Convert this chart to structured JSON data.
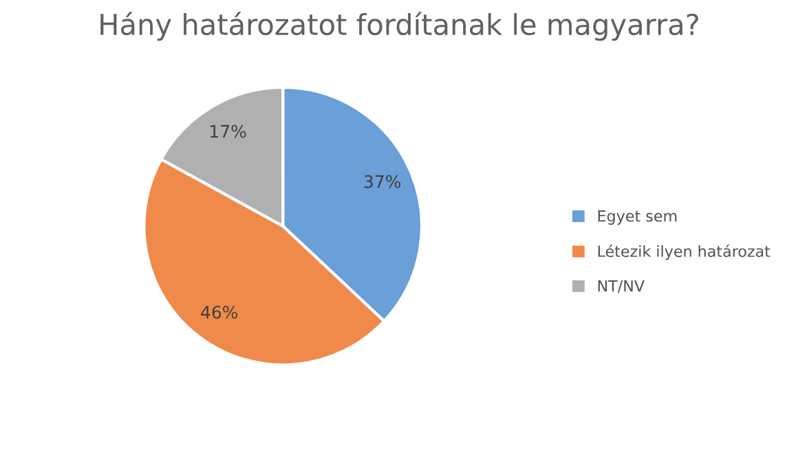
{
  "chart_data": {
    "type": "pie",
    "title": "Hány határozatot fordítanak le magyarra?",
    "categories": [
      "Egyet sem",
      "Létezik ilyen határozat",
      "NT/NV"
    ],
    "values": [
      37,
      46,
      17
    ],
    "colors": [
      "#6a9fd8",
      "#ef8a4a",
      "#b0b0b0"
    ],
    "value_labels": [
      "37%",
      "46%",
      "17%"
    ],
    "legend": "right"
  }
}
